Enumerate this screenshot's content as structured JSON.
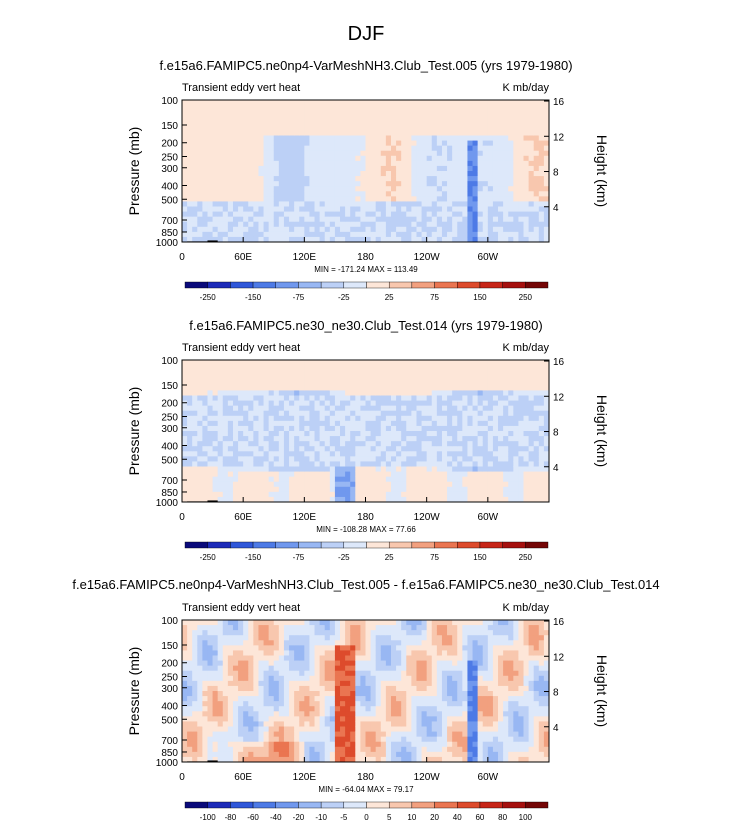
{
  "page": {
    "title": "DJF"
  },
  "chart_data": [
    {
      "type": "heatmap",
      "title": "f.e15a6.FAMIPC5.ne0np4-VarMeshNH3.Club_Test.005 (yrs 1979-1980)",
      "left_string": "Transient eddy vert heat",
      "right_string": "K mb/day",
      "ylabel": "Pressure (mb)",
      "y2label": "Height (km)",
      "pressure_ticks": [
        "100",
        "150",
        "200",
        "250",
        "300",
        "400",
        "500",
        "700",
        "850",
        "1000"
      ],
      "pressure_values": [
        100,
        150,
        200,
        250,
        300,
        400,
        500,
        700,
        850,
        1000
      ],
      "height_ticks": [
        "16",
        "12",
        "8",
        "4"
      ],
      "height_values": [
        16,
        12,
        8,
        4
      ],
      "x_ticks": [
        "0",
        "60E",
        "120E",
        "180",
        "120W",
        "60W"
      ],
      "x_values": [
        0,
        60,
        120,
        180,
        240,
        300
      ],
      "xlim": [
        0,
        360
      ],
      "ylim": [
        1000,
        100
      ],
      "stats": "MIN = -171.24   MAX = 113.49",
      "colorbar_labels": [
        "-250",
        "-150",
        "-75",
        "-25",
        "25",
        "75",
        "150",
        "250"
      ],
      "colorbar_colors": [
        "#0a0a7a",
        "#1c2ab8",
        "#2f57d9",
        "#4d7ae6",
        "#7098ee",
        "#98b7f3",
        "#bcd0f6",
        "#dde8fa",
        "#fde6d8",
        "#f8c7ae",
        "#f2a07f",
        "#ea7551",
        "#dd4b2c",
        "#c72518",
        "#a5100e",
        "#740606"
      ],
      "features": [
        {
          "name": "low-troposphere-negative",
          "lon_min": 0,
          "lon_max": 360,
          "p_min": 500,
          "p_max": 1000,
          "level": -1
        },
        {
          "name": "atlantic-column",
          "lon_min": 280,
          "lon_max": 288,
          "p_min": 200,
          "p_max": 1000,
          "level": -4
        }
      ]
    },
    {
      "type": "heatmap",
      "title": "f.e15a6.FAMIPC5.ne30_ne30.Club_Test.014 (yrs 1979-1980)",
      "left_string": "Transient eddy vert heat",
      "right_string": "K mb/day",
      "ylabel": "Pressure (mb)",
      "y2label": "Height (km)",
      "pressure_ticks": [
        "100",
        "150",
        "200",
        "250",
        "300",
        "400",
        "500",
        "700",
        "850",
        "1000"
      ],
      "pressure_values": [
        100,
        150,
        200,
        250,
        300,
        400,
        500,
        700,
        850,
        1000
      ],
      "height_ticks": [
        "16",
        "12",
        "8",
        "4"
      ],
      "height_values": [
        16,
        12,
        8,
        4
      ],
      "x_ticks": [
        "0",
        "60E",
        "120E",
        "180",
        "120W",
        "60W"
      ],
      "x_values": [
        0,
        60,
        120,
        180,
        240,
        300
      ],
      "xlim": [
        0,
        360
      ],
      "ylim": [
        1000,
        100
      ],
      "stats": "MIN = -108.28   MAX =  77.66",
      "colorbar_labels": [
        "-250",
        "-150",
        "-75",
        "-25",
        "25",
        "75",
        "150",
        "250"
      ],
      "colorbar_colors": [
        "#0a0a7a",
        "#1c2ab8",
        "#2f57d9",
        "#4d7ae6",
        "#7098ee",
        "#98b7f3",
        "#bcd0f6",
        "#dde8fa",
        "#fde6d8",
        "#f8c7ae",
        "#f2a07f",
        "#ea7551",
        "#dd4b2c",
        "#c72518",
        "#a5100e",
        "#740606"
      ],
      "features": [
        {
          "name": "pacific-column",
          "lon_min": 150,
          "lon_max": 168,
          "p_min": 200,
          "p_max": 1000,
          "level": -3
        },
        {
          "name": "mid-troposphere-negative",
          "lon_min": 0,
          "lon_max": 360,
          "p_min": 180,
          "p_max": 550,
          "level": -1
        }
      ]
    },
    {
      "type": "heatmap",
      "title": "f.e15a6.FAMIPC5.ne0np4-VarMeshNH3.Club_Test.005 - f.e15a6.FAMIPC5.ne30_ne30.Club_Test.014",
      "left_string": "Transient eddy vert heat",
      "right_string": "K mb/day",
      "ylabel": "Pressure (mb)",
      "y2label": "Height (km)",
      "pressure_ticks": [
        "100",
        "150",
        "200",
        "250",
        "300",
        "400",
        "500",
        "700",
        "850",
        "1000"
      ],
      "pressure_values": [
        100,
        150,
        200,
        250,
        300,
        400,
        500,
        700,
        850,
        1000
      ],
      "height_ticks": [
        "16",
        "12",
        "8",
        "4"
      ],
      "height_values": [
        16,
        12,
        8,
        4
      ],
      "x_ticks": [
        "0",
        "60E",
        "120E",
        "180",
        "120W",
        "60W"
      ],
      "x_values": [
        0,
        60,
        120,
        180,
        240,
        300
      ],
      "xlim": [
        0,
        360
      ],
      "ylim": [
        1000,
        100
      ],
      "stats": "MIN = -64.04   MAX =  79.17",
      "colorbar_labels": [
        "-100",
        "-80",
        "-60",
        "-40",
        "-20",
        "-10",
        "-5",
        "0",
        "5",
        "10",
        "20",
        "40",
        "60",
        "80",
        "100"
      ],
      "colorbar_colors": [
        "#0a0a7a",
        "#1c2ab8",
        "#2f57d9",
        "#4d7ae6",
        "#7098ee",
        "#98b7f3",
        "#bcd0f6",
        "#dde8fa",
        "#fde6d8",
        "#f8c7ae",
        "#f2a07f",
        "#ea7551",
        "#dd4b2c",
        "#c72518",
        "#a5100e",
        "#740606"
      ],
      "features": [
        {
          "name": "pacific-positive-column",
          "lon_min": 150,
          "lon_max": 168,
          "p_min": 150,
          "p_max": 1000,
          "level": 4
        },
        {
          "name": "atlantic-negative-column",
          "lon_min": 280,
          "lon_max": 288,
          "p_min": 200,
          "p_max": 1000,
          "level": -4
        }
      ]
    }
  ]
}
